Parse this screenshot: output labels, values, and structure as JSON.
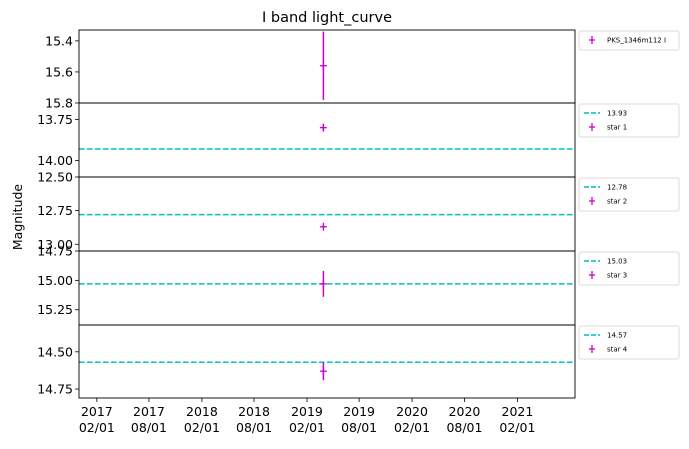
{
  "chart_data": {
    "type": "scatter",
    "title": "I band light_curve",
    "ylabel": "Magnitude",
    "xlabel": "",
    "y_inverted": true,
    "grid": false,
    "legend_placement": "outside-right",
    "colors": {
      "data": "#cc00cc",
      "reference": "#00bfbf"
    },
    "x_ticks": [
      {
        "value": "2017-02-01",
        "line1": "2017",
        "line2": "02/01"
      },
      {
        "value": "2017-08-01",
        "line1": "2017",
        "line2": "08/01"
      },
      {
        "value": "2018-02-01",
        "line1": "2018",
        "line2": "02/01"
      },
      {
        "value": "2018-08-01",
        "line1": "2018",
        "line2": "08/01"
      },
      {
        "value": "2019-02-01",
        "line1": "2019",
        "line2": "02/01"
      },
      {
        "value": "2019-08-01",
        "line1": "2019",
        "line2": "08/01"
      },
      {
        "value": "2020-02-01",
        "line1": "2020",
        "line2": "02/01"
      },
      {
        "value": "2020-08-01",
        "line1": "2020",
        "line2": "08/01"
      },
      {
        "value": "2021-02-01",
        "line1": "2021",
        "line2": "02/01"
      }
    ],
    "xlim": [
      "2016-12-01",
      "2021-08-20"
    ],
    "panels": [
      {
        "ylim": [
          15.8,
          15.33
        ],
        "yticks": [
          {
            "value": 15.4,
            "label": "15.4"
          },
          {
            "value": 15.6,
            "label": "15.6"
          },
          {
            "value": 15.8,
            "label": "15.8"
          }
        ],
        "reference_line": null,
        "series": [
          {
            "name": "PKS_1346m112 I",
            "points": [
              {
                "x": "2019-03-30",
                "y": 15.56,
                "yerr": 0.22
              }
            ]
          }
        ]
      },
      {
        "ylim": [
          14.1,
          13.65
        ],
        "yticks": [
          {
            "value": 13.75,
            "label": "13.75"
          },
          {
            "value": 14.0,
            "label": "14.00"
          }
        ],
        "reference_line": {
          "value": 13.93,
          "label": "13.93"
        },
        "series": [
          {
            "name": "star 1",
            "points": [
              {
                "x": "2019-03-30",
                "y": 13.8,
                "yerr": 0.02
              }
            ]
          }
        ]
      },
      {
        "ylim": [
          13.05,
          12.5
        ],
        "yticks": [
          {
            "value": 12.5,
            "label": "12.50"
          },
          {
            "value": 12.75,
            "label": "12.75"
          },
          {
            "value": 13.0,
            "label": "13.00"
          }
        ],
        "reference_line": {
          "value": 12.78,
          "label": "12.78"
        },
        "series": [
          {
            "name": "star 2",
            "points": [
              {
                "x": "2019-03-30",
                "y": 12.87,
                "yerr": 0.01
              }
            ]
          }
        ]
      },
      {
        "ylim": [
          15.38,
          14.75
        ],
        "yticks": [
          {
            "value": 14.75,
            "label": "14.75"
          },
          {
            "value": 15.0,
            "label": "15.00"
          },
          {
            "value": 15.25,
            "label": "15.25"
          }
        ],
        "reference_line": {
          "value": 15.03,
          "label": "15.03"
        },
        "series": [
          {
            "name": "star 3",
            "points": [
              {
                "x": "2019-03-30",
                "y": 15.03,
                "yerr": 0.11
              }
            ]
          }
        ]
      },
      {
        "ylim": [
          14.81,
          14.32
        ],
        "yticks": [
          {
            "value": 14.5,
            "label": "14.50"
          },
          {
            "value": 14.75,
            "label": "14.75"
          }
        ],
        "reference_line": {
          "value": 14.57,
          "label": "14.57"
        },
        "series": [
          {
            "name": "star 4",
            "points": [
              {
                "x": "2019-03-30",
                "y": 14.63,
                "yerr": 0.06
              }
            ]
          }
        ]
      }
    ]
  }
}
